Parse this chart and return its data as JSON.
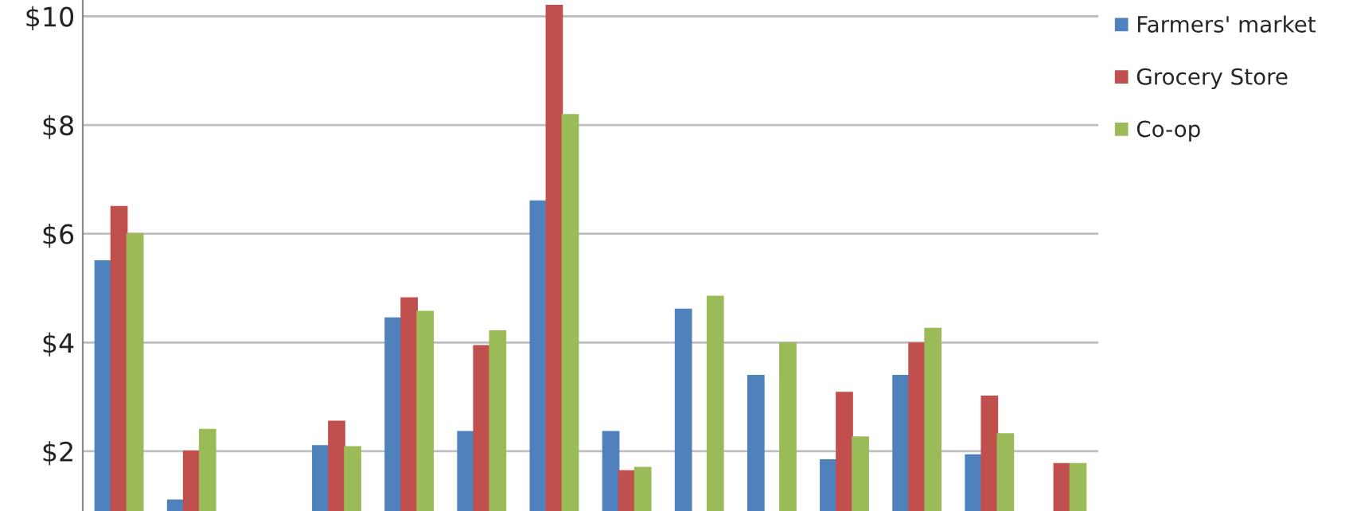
{
  "chart_data": {
    "type": "bar",
    "categories": [
      null,
      null,
      null,
      null,
      null,
      null,
      null,
      null,
      null,
      null,
      null,
      null,
      null,
      null
    ],
    "series": [
      {
        "name": "Farmers' market",
        "color": "#4f81bd",
        "values": [
          5.5,
          1.1,
          null,
          2.1,
          4.45,
          2.36,
          6.6,
          2.36,
          4.61,
          3.39,
          1.84,
          3.39,
          1.93,
          null
        ]
      },
      {
        "name": "Grocery Store",
        "color": "#c0504d",
        "values": [
          6.5,
          2.0,
          null,
          2.55,
          4.82,
          3.94,
          10.2,
          1.64,
          null,
          null,
          3.08,
          3.99,
          3.01,
          1.77
        ]
      },
      {
        "name": "Co-op",
        "color": "#9bbb59",
        "values": [
          6.0,
          2.4,
          null,
          2.08,
          4.57,
          4.21,
          8.19,
          1.7,
          4.85,
          3.99,
          2.26,
          4.26,
          2.32,
          1.77
        ]
      }
    ],
    "ylim": [
      0.9,
      10.3
    ],
    "yticks": [
      {
        "value": 2,
        "label": "$2"
      },
      {
        "value": 4,
        "label": "$4"
      },
      {
        "value": 6,
        "label": "$6"
      },
      {
        "value": 8,
        "label": "$8"
      },
      {
        "value": 10,
        "label": "$10"
      }
    ],
    "grid": "y",
    "legend": "top right",
    "tick_labels": "y"
  }
}
